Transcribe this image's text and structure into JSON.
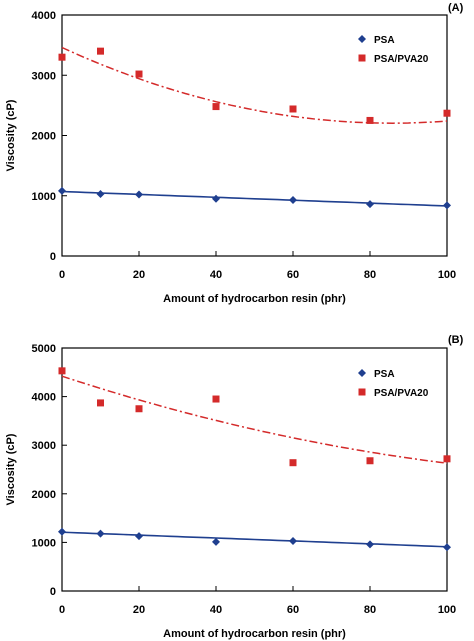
{
  "chart_data": [
    {
      "type": "scatter",
      "panel_label": "(A)",
      "xlabel": "Amount of hydrocarbon resin (phr)",
      "ylabel": "Viscosity (cP)",
      "xlim": [
        0,
        100
      ],
      "ylim": [
        0,
        4000
      ],
      "xticks": [
        0,
        20,
        40,
        60,
        80,
        100
      ],
      "yticks": [
        0,
        1000,
        2000,
        3000,
        4000
      ],
      "legend_position": "top-right",
      "grid": false,
      "series": [
        {
          "name": "PSA",
          "color": "#1f3f8f",
          "marker": "diamond",
          "x": [
            0,
            10,
            20,
            40,
            60,
            80,
            100
          ],
          "y": [
            1080,
            1030,
            1020,
            950,
            930,
            860,
            840
          ],
          "trend": {
            "kind": "linear",
            "style": "solid",
            "coef": [
              1070,
              -2.4
            ]
          }
        },
        {
          "name": "PSA/PVA20",
          "color": "#d42a2a",
          "marker": "square",
          "x": [
            0,
            10,
            20,
            40,
            60,
            80,
            100
          ],
          "y": [
            3300,
            3400,
            3020,
            2480,
            2440,
            2250,
            2370
          ],
          "trend": {
            "kind": "poly2",
            "style": "dashdot",
            "coef": [
              3460,
              -29.3,
              0.171
            ]
          }
        }
      ]
    },
    {
      "type": "scatter",
      "panel_label": "(B)",
      "xlabel": "Amount of hydrocarbon resin (phr)",
      "ylabel": "Viscosity (cP)",
      "xlim": [
        0,
        100
      ],
      "ylim": [
        0,
        5000
      ],
      "xticks": [
        0,
        20,
        40,
        60,
        80,
        100
      ],
      "yticks": [
        0,
        1000,
        2000,
        3000,
        4000,
        5000
      ],
      "legend_position": "top-right",
      "grid": false,
      "series": [
        {
          "name": "PSA",
          "color": "#1f3f8f",
          "marker": "diamond",
          "x": [
            0,
            10,
            20,
            40,
            60,
            80,
            100
          ],
          "y": [
            1220,
            1180,
            1130,
            1010,
            1030,
            960,
            900
          ],
          "trend": {
            "kind": "linear",
            "style": "solid",
            "coef": [
              1210,
              -3.0
            ]
          }
        },
        {
          "name": "PSA/PVA20",
          "color": "#d42a2a",
          "marker": "square",
          "x": [
            0,
            10,
            20,
            40,
            60,
            80,
            100
          ],
          "y": [
            4530,
            3870,
            3750,
            3950,
            2640,
            2680,
            2720
          ],
          "trend": {
            "kind": "poly2",
            "style": "dashdot",
            "coef": [
              4420,
              -26.0,
              0.081
            ]
          }
        }
      ]
    }
  ]
}
